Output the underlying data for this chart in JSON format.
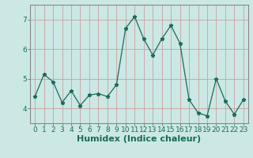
{
  "xlabel": "Humidex (Indice chaleur)",
  "x": [
    0,
    1,
    2,
    3,
    4,
    5,
    6,
    7,
    8,
    9,
    10,
    11,
    12,
    13,
    14,
    15,
    16,
    17,
    18,
    19,
    20,
    21,
    22,
    23
  ],
  "y": [
    4.4,
    5.15,
    4.9,
    4.2,
    4.6,
    4.1,
    4.45,
    4.5,
    4.4,
    4.8,
    6.7,
    7.1,
    6.35,
    5.8,
    6.35,
    6.8,
    6.2,
    4.3,
    3.85,
    3.75,
    5.0,
    4.25,
    3.8,
    4.3
  ],
  "line_color": "#1a6b5a",
  "marker": "*",
  "marker_size": 3.5,
  "bg_color": "#cce8e4",
  "grid_color_h": "#c8a0a0",
  "grid_color_v": "#c8a0a0",
  "axis_color": "#1a6b5a",
  "spine_color": "#888888",
  "ylim": [
    3.5,
    7.5
  ],
  "xlim": [
    -0.5,
    23.5
  ],
  "yticks": [
    4,
    5,
    6,
    7
  ],
  "xticks": [
    0,
    1,
    2,
    3,
    4,
    5,
    6,
    7,
    8,
    9,
    10,
    11,
    12,
    13,
    14,
    15,
    16,
    17,
    18,
    19,
    20,
    21,
    22,
    23
  ],
  "xlabel_fontsize": 8,
  "tick_fontsize": 6.5
}
